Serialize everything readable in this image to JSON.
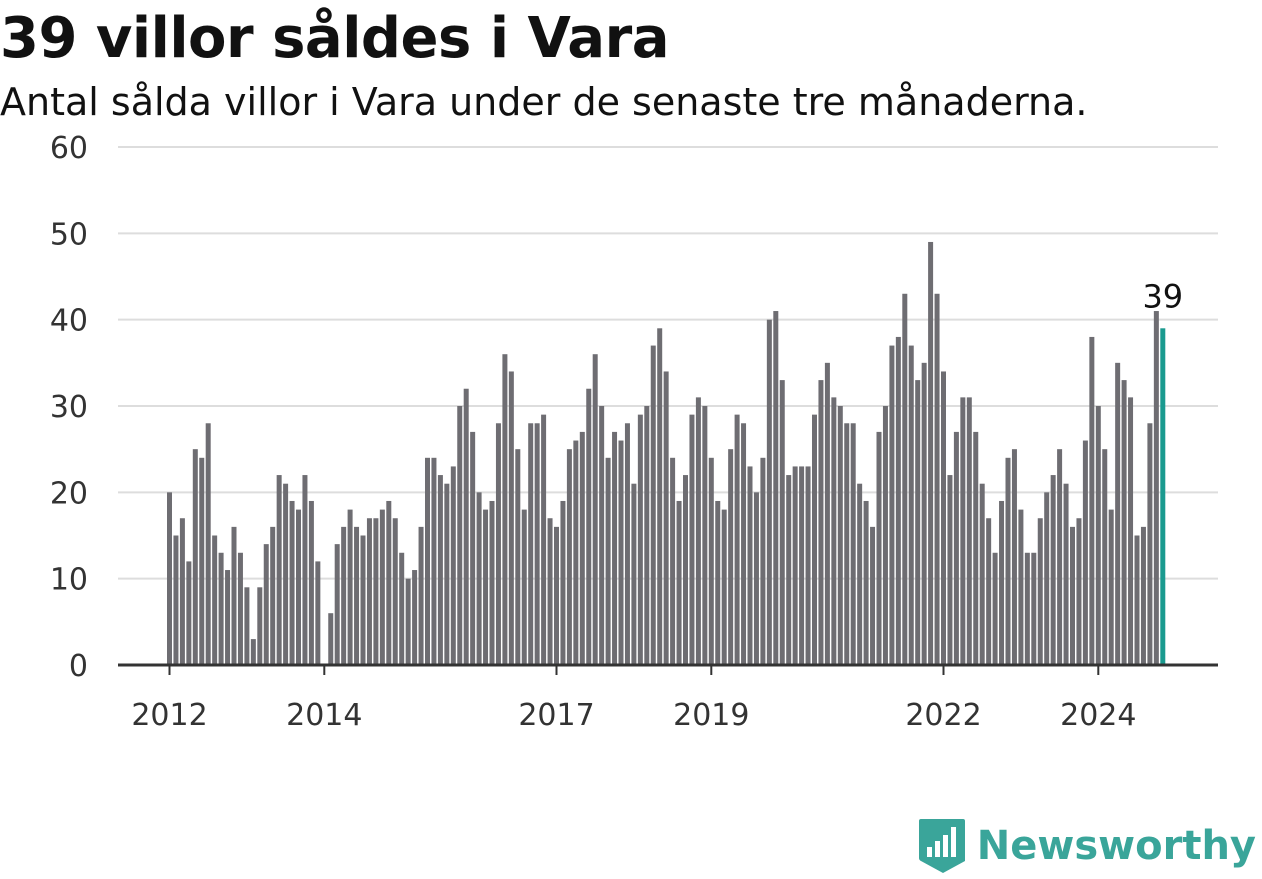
{
  "header": {
    "title": "39 villor såldes i Vara",
    "subtitle": "Antal sålda villor i Vara under de senaste tre månaderna."
  },
  "brand": {
    "name": "Newsworthy",
    "icon": "newsworthy-logo-icon"
  },
  "colors": {
    "bar": "#6e6d72",
    "highlight": "#1a9a8f",
    "grid": "#dddddd",
    "axis": "#333333",
    "brand": "#3aa59a"
  },
  "chart_data": {
    "type": "bar",
    "ylim": [
      0,
      60
    ],
    "yticks": [
      0,
      10,
      20,
      30,
      40,
      50,
      60
    ],
    "grid": true,
    "start": "2012-01",
    "xtick_labels": [
      "2012",
      "2014",
      "2017",
      "2019",
      "2022",
      "2024"
    ],
    "values": [
      20,
      15,
      17,
      12,
      25,
      24,
      28,
      15,
      13,
      11,
      16,
      13,
      9,
      3,
      9,
      14,
      16,
      22,
      21,
      19,
      18,
      22,
      19,
      12,
      0,
      6,
      14,
      16,
      18,
      16,
      15,
      17,
      17,
      18,
      19,
      17,
      13,
      10,
      11,
      16,
      24,
      24,
      22,
      21,
      23,
      30,
      32,
      27,
      20,
      18,
      19,
      28,
      36,
      34,
      25,
      18,
      28,
      28,
      29,
      17,
      16,
      19,
      25,
      26,
      27,
      32,
      36,
      30,
      24,
      27,
      26,
      28,
      21,
      29,
      30,
      37,
      39,
      34,
      24,
      19,
      22,
      29,
      31,
      30,
      24,
      19,
      18,
      25,
      29,
      28,
      23,
      20,
      24,
      40,
      41,
      33,
      22,
      23,
      23,
      23,
      29,
      33,
      35,
      31,
      30,
      28,
      28,
      21,
      19,
      16,
      27,
      30,
      37,
      38,
      43,
      37,
      33,
      35,
      49,
      43,
      34,
      22,
      27,
      31,
      31,
      27,
      21,
      17,
      13,
      19,
      24,
      25,
      18,
      13,
      13,
      17,
      20,
      22,
      25,
      21,
      16,
      17,
      26,
      38,
      30,
      25,
      18,
      35,
      33,
      31,
      15,
      16,
      28,
      41,
      39
    ],
    "highlight_label": "39"
  }
}
